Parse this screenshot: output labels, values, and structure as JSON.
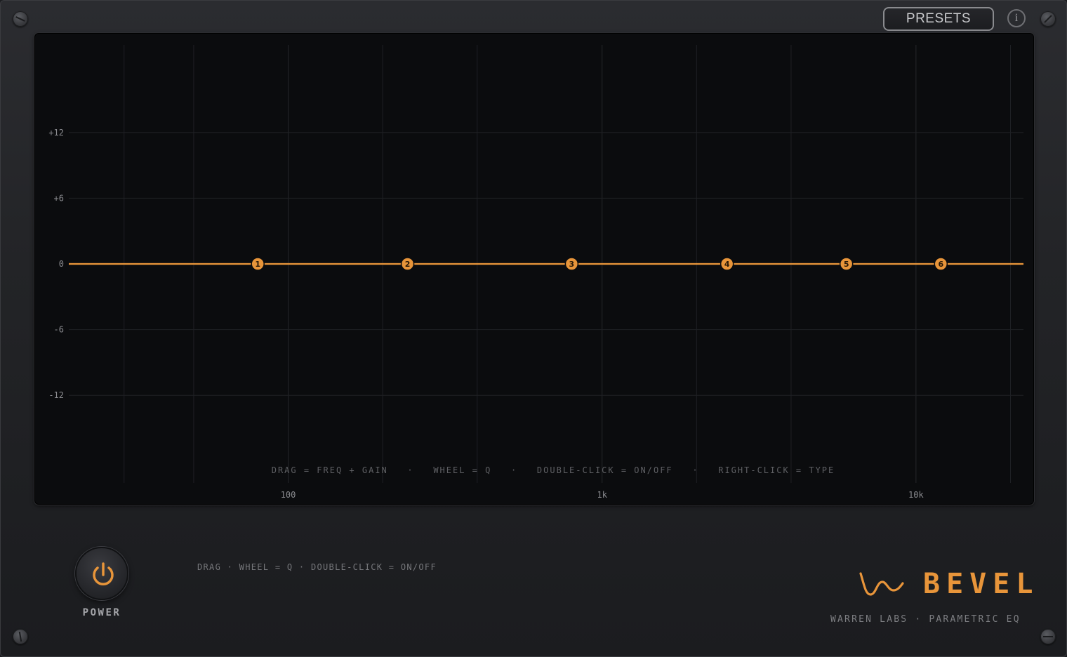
{
  "header": {
    "presets_label": "PRESETS",
    "info_label": "i"
  },
  "graph": {
    "hint": "DRAG = FREQ + GAIN   ·   WHEEL = Q   ·   DOUBLE-CLICK = ON/OFF   ·   RIGHT-CLICK = TYPE"
  },
  "chart_data": {
    "type": "line",
    "x_scale": "log",
    "xlim": [
      20,
      22000
    ],
    "ylim": [
      -20,
      20
    ],
    "x_ticks": [
      {
        "value": 100,
        "label": "100"
      },
      {
        "value": 1000,
        "label": "1k"
      },
      {
        "value": 10000,
        "label": "10k"
      }
    ],
    "x_minor_grid": [
      30,
      50,
      200,
      400,
      2000,
      4000,
      20000
    ],
    "y_ticks": [
      {
        "value": 12,
        "label": "+12"
      },
      {
        "value": 6,
        "label": "+6"
      },
      {
        "value": 0,
        "label": "0"
      },
      {
        "value": -6,
        "label": "-6"
      },
      {
        "value": -12,
        "label": "-12"
      }
    ],
    "grid": true,
    "curve": {
      "x": [
        20,
        22000
      ],
      "y": [
        0,
        0
      ]
    },
    "bands": [
      {
        "label": "1",
        "freq": 80,
        "gain": 0
      },
      {
        "label": "2",
        "freq": 240,
        "gain": 0
      },
      {
        "label": "3",
        "freq": 800,
        "gain": 0
      },
      {
        "label": "4",
        "freq": 2500,
        "gain": 0
      },
      {
        "label": "5",
        "freq": 6000,
        "gain": 0
      },
      {
        "label": "6",
        "freq": 12000,
        "gain": 0
      }
    ],
    "accent_color": "#e8953a"
  },
  "footer": {
    "power_label": "POWER",
    "hint": "DRAG · WHEEL = Q · DOUBLE-CLICK = ON/OFF",
    "brand_name": "BEVEL",
    "brand_sub": "WARREN LABS  ·  PARAMETRIC EQ"
  },
  "icons": {
    "power": "power-icon",
    "logo": "wave-logo-icon",
    "edit": "pencil-icon"
  }
}
